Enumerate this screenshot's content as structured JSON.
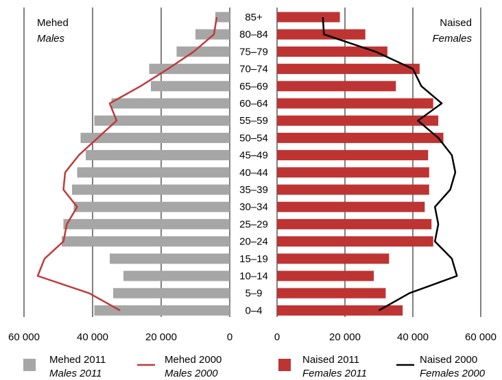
{
  "chart_data": {
    "type": "bar",
    "subtype": "population-pyramid",
    "categories": [
      "85+",
      "80–84",
      "75–79",
      "70–74",
      "65–69",
      "60–64",
      "55–59",
      "50–54",
      "45–49",
      "40–44",
      "35–39",
      "30–34",
      "25–29",
      "20–24",
      "15–19",
      "10–14",
      "5–9",
      "0–4"
    ],
    "males_heading": {
      "line1": "Mehed",
      "line2": "Males"
    },
    "females_heading": {
      "line1": "Naised",
      "line2": "Females"
    },
    "x_range": [
      0,
      60000
    ],
    "x_ticks": [
      0,
      20000,
      40000,
      60000
    ],
    "left_tick_labels": [
      "60 000",
      "40 000",
      "20 000",
      "0"
    ],
    "right_tick_labels": [
      "0",
      "20 000",
      "40 000",
      "60 000"
    ],
    "grid": true,
    "colors": {
      "males_2011": "#a6a6a6",
      "males_2000": "#c0393b",
      "females_2011": "#be3433",
      "females_2000": "#000000",
      "gridline": "#000000"
    },
    "series": [
      {
        "name": "Mehed 2011",
        "name_en": "Males 2011",
        "kind": "bar",
        "side": "left",
        "values": [
          4200,
          10000,
          15500,
          23500,
          23000,
          34500,
          39500,
          43500,
          42000,
          44500,
          46000,
          45500,
          48500,
          49000,
          35000,
          31000,
          34000,
          39500
        ]
      },
      {
        "name": "Mehed 2000",
        "name_en": "Males 2000",
        "kind": "line",
        "side": "left",
        "values": [
          3800,
          4600,
          10500,
          18000,
          26000,
          35000,
          33000,
          38500,
          44000,
          48000,
          48500,
          44500,
          47500,
          48500,
          54000,
          56000,
          41000,
          32000
        ]
      },
      {
        "name": "Naised 2011",
        "name_en": "Females 2011",
        "kind": "bar",
        "side": "right",
        "values": [
          18500,
          26000,
          32500,
          42000,
          35000,
          46000,
          47500,
          49000,
          44500,
          44800,
          44800,
          43500,
          45500,
          46000,
          33000,
          28500,
          32000,
          37000
        ]
      },
      {
        "name": "Naised 2000",
        "name_en": "Females 2000",
        "kind": "line",
        "side": "right",
        "values": [
          13500,
          13800,
          29000,
          40000,
          42500,
          48500,
          41500,
          47500,
          51500,
          52500,
          51000,
          46500,
          47500,
          46500,
          51500,
          53000,
          39000,
          30000
        ]
      }
    ],
    "legend_placement": "bottom"
  },
  "legend": [
    {
      "key": "males_2011",
      "label": "Mehed 2011",
      "label_en": "Males 2011",
      "symbol": "square"
    },
    {
      "key": "males_2000",
      "label": "Mehed 2000",
      "label_en": "Males 2000",
      "symbol": "line"
    },
    {
      "key": "females_2011",
      "label": "Naised 2011",
      "label_en": "Females 2011",
      "symbol": "square"
    },
    {
      "key": "females_2000",
      "label": "Naised 2000",
      "label_en": "Females 2000",
      "symbol": "line"
    }
  ]
}
